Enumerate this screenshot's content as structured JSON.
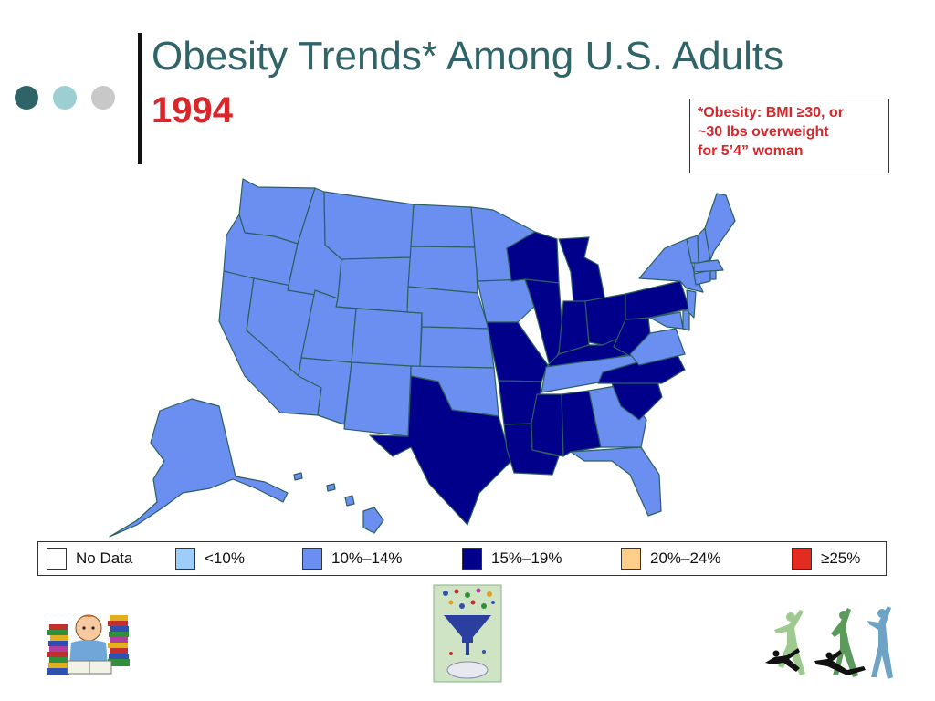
{
  "header": {
    "title": "Obesity Trends* Among U.S. Adults",
    "year": "1994"
  },
  "note": {
    "lines": [
      "*Obesity: BMI ≥30, or",
      "~30 lbs overweight",
      "for 5’4” woman"
    ]
  },
  "decor": {
    "dot_colors": [
      "#2e6467",
      "#9ccfd1",
      "#c8c8c8"
    ]
  },
  "legend": [
    {
      "label": "No Data",
      "color": "#ffffff"
    },
    {
      "label": "<10%",
      "color": "#9fcdfb"
    },
    {
      "label": "10%–14%",
      "color": "#6b8ff0"
    },
    {
      "label": "15%–19%",
      "color": "#00008b"
    },
    {
      "label": "20%–24%",
      "color": "#ffce8a"
    },
    {
      "label": "≥25%",
      "color": "#e32b22"
    }
  ],
  "map_data": {
    "categories": {
      "10%–14%": [
        "Washington",
        "Oregon",
        "California",
        "Nevada",
        "Idaho",
        "Montana",
        "Wyoming",
        "Utah",
        "Arizona",
        "Colorado",
        "New Mexico",
        "North Dakota",
        "South Dakota",
        "Nebraska",
        "Kansas",
        "Oklahoma",
        "Minnesota",
        "Iowa",
        "Tennessee",
        "Georgia",
        "Florida",
        "Virginia",
        "Maryland",
        "Delaware",
        "New Jersey",
        "New York",
        "Connecticut",
        "Rhode Island",
        "Massachusetts",
        "Vermont",
        "New Hampshire",
        "Maine",
        "Alaska",
        "Hawaii"
      ],
      "15%–19%": [
        "Texas",
        "Louisiana",
        "Arkansas",
        "Missouri",
        "Mississippi",
        "Alabama",
        "Wisconsin",
        "Michigan",
        "Illinois",
        "Indiana",
        "Ohio",
        "Kentucky",
        "West Virginia",
        "Pennsylvania",
        "North Carolina",
        "South Carolina"
      ]
    },
    "colors": {
      "border": "#2b5f5f"
    }
  },
  "clipart": {
    "left": "reading-student-illustration",
    "center": "learning-funnel-illustration",
    "right": "dancers-silhouettes-illustration"
  }
}
